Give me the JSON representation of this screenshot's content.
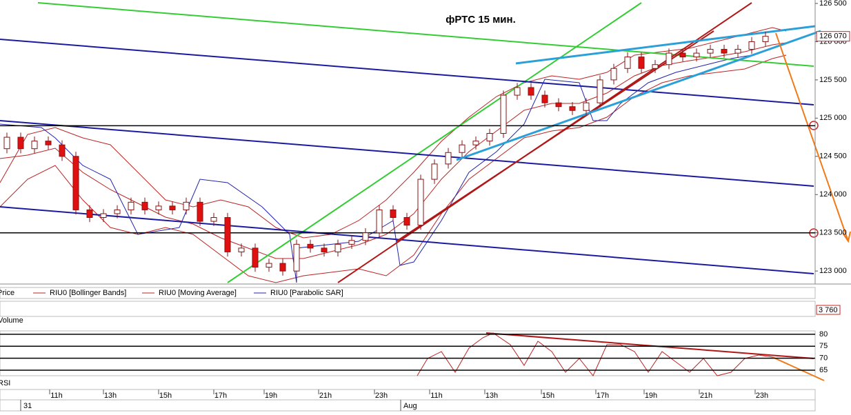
{
  "chart_data": {
    "type": "candlestick",
    "title": "фРТС   15 мин.",
    "open": [
      124600,
      124750,
      124600,
      124700,
      124650,
      124500,
      123800,
      123700,
      123750,
      123800,
      123900,
      123800,
      123850,
      123800,
      123900,
      123650,
      123700,
      123250,
      123300,
      123050,
      123100,
      123000,
      123350,
      123300,
      123250,
      123350,
      123400,
      123500,
      123800,
      123700,
      123600,
      124200,
      124400,
      124550,
      124650,
      124700,
      124800,
      125300,
      125400,
      125300,
      125200,
      125150,
      125100,
      125200,
      125500,
      125650,
      125800,
      125650,
      125700,
      125850,
      125800,
      125850,
      125900,
      125850,
      125900,
      126000
    ],
    "high": [
      124810,
      124810,
      124760,
      124760,
      124710,
      124560,
      123860,
      123810,
      123860,
      123960,
      123960,
      123910,
      123910,
      123960,
      123960,
      123760,
      123760,
      123360,
      123360,
      123160,
      123160,
      123410,
      123410,
      123360,
      123410,
      123460,
      123560,
      123860,
      123860,
      123760,
      124260,
      124460,
      124610,
      124710,
      124760,
      124860,
      125360,
      125460,
      125460,
      125360,
      125260,
      125210,
      125260,
      125560,
      125710,
      125860,
      125860,
      125760,
      125910,
      125910,
      125910,
      125960,
      125960,
      125960,
      126060,
      126130
    ],
    "low": [
      124540,
      124540,
      124540,
      124590,
      124440,
      123740,
      123640,
      123640,
      123690,
      123740,
      123740,
      123740,
      123740,
      123740,
      123590,
      123590,
      123190,
      123190,
      122990,
      122990,
      122940,
      122940,
      123240,
      123190,
      123190,
      123290,
      123340,
      123440,
      123640,
      123540,
      123540,
      124140,
      124340,
      124490,
      124590,
      124640,
      124740,
      125240,
      125240,
      125140,
      125090,
      125040,
      125040,
      125140,
      125440,
      125590,
      125590,
      125590,
      125640,
      125740,
      125740,
      125790,
      125790,
      125790,
      125840,
      125940
    ],
    "close": [
      124750,
      124600,
      124700,
      124650,
      124500,
      123800,
      123700,
      123750,
      123800,
      123900,
      123800,
      123850,
      123800,
      123900,
      123650,
      123700,
      123250,
      123300,
      123050,
      123100,
      123000,
      123350,
      123300,
      123250,
      123350,
      123400,
      123500,
      123800,
      123700,
      123600,
      124200,
      124400,
      124550,
      124650,
      124700,
      124800,
      125300,
      125400,
      125300,
      125200,
      125150,
      125100,
      125200,
      125500,
      125650,
      125800,
      125650,
      125700,
      125850,
      125800,
      125850,
      125900,
      125850,
      125900,
      126000,
      126070
    ],
    "ylim": [
      122830,
      126545
    ],
    "yticks": [
      {
        "value": 126500,
        "label": "126 500"
      },
      {
        "value": 126000,
        "label": "126 000"
      },
      {
        "value": 125500,
        "label": "125 500"
      },
      {
        "value": 125000,
        "label": "125 000"
      },
      {
        "value": 124500,
        "label": "124 500"
      },
      {
        "value": 124000,
        "label": "124 000"
      },
      {
        "value": 123500,
        "label": "123 500"
      },
      {
        "value": 123000,
        "label": "123 000"
      }
    ],
    "last_price": {
      "value": 126070,
      "label": "126 070"
    },
    "levels": [
      124900,
      123500
    ],
    "legend": [
      "Price",
      "RIU0 [Bollinger Bands]",
      "RIU0 [Moving Average]",
      "RIU0 [Parabolic SAR]"
    ],
    "volume": {
      "label": "Volume",
      "value_label": {
        "value": 3760,
        "label": "3 760"
      }
    },
    "rsi": {
      "label": "RSI",
      "ylim": [
        62.7,
        81.4
      ],
      "yticks": [
        80,
        75,
        70,
        65
      ]
    },
    "time_labels": [
      "11h",
      "13h",
      "15h",
      "17h",
      "19h",
      "21h",
      "23h",
      "11h",
      "13h",
      "15h",
      "17h",
      "19h",
      "21h",
      "23h"
    ],
    "date_labels": [
      "31",
      "Aug"
    ]
  }
}
